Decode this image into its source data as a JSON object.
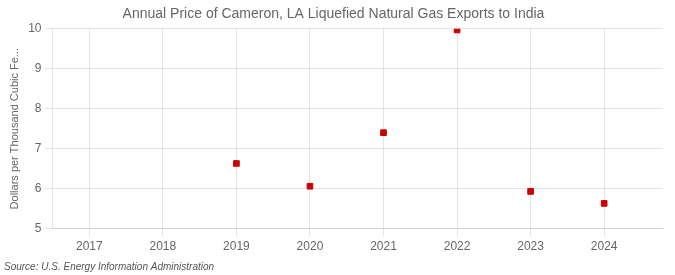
{
  "chart_data": {
    "type": "scatter",
    "title": "Annual Price of Cameron, LA Liquefied Natural Gas Exports to India",
    "ylabel": "Dollars per Thousand Cubic Fe...",
    "source": "Source: U.S. Energy Information Administration",
    "x": [
      2019,
      2020,
      2021,
      2022,
      2023,
      2024
    ],
    "values": [
      6.63,
      6.06,
      7.4,
      9.97,
      5.93,
      5.63
    ],
    "color": "#cc0000",
    "marker": "square",
    "xlim": [
      2016.5,
      2024.8
    ],
    "xticks": [
      2017,
      2018,
      2019,
      2020,
      2021,
      2022,
      2023,
      2024
    ],
    "ylim": [
      5,
      10
    ],
    "yticks": [
      5,
      6,
      7,
      8,
      9,
      10
    ],
    "grid": true
  }
}
